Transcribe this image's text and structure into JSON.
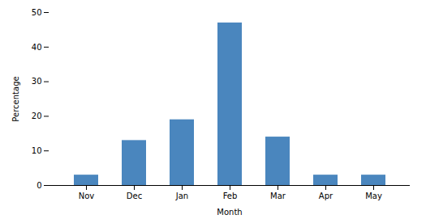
{
  "chart_data": {
    "type": "bar",
    "categories": [
      "Nov",
      "Dec",
      "Jan",
      "Feb",
      "Mar",
      "Apr",
      "May"
    ],
    "values": [
      3,
      13,
      19,
      47,
      14,
      3,
      3
    ],
    "color": "#4A86BE",
    "xlabel": "Month",
    "ylabel": "Percentage",
    "ylim": [
      0,
      50
    ],
    "yticks": [
      0,
      10,
      20,
      30,
      40,
      50
    ],
    "grid": false
  }
}
